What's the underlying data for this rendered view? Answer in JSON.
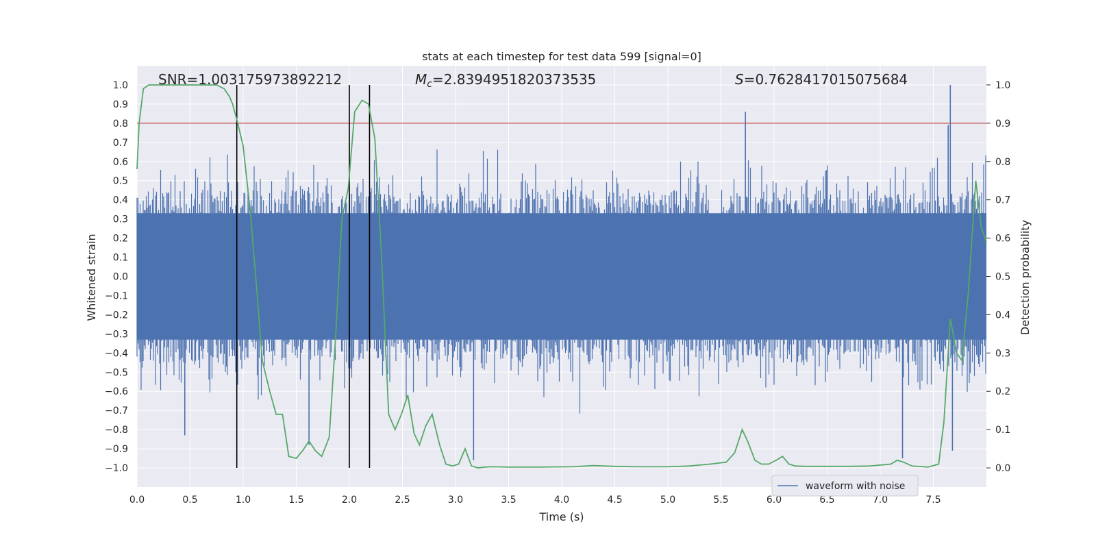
{
  "chart_data": {
    "type": "line",
    "title": "stats at each timestep for test data 599 [signal=0]",
    "xlabel": "Time (s)",
    "ylabel": "Whitened strain",
    "ylabel_right": "Detection probability",
    "xlim": [
      0.0,
      8.0
    ],
    "ylim": [
      -1.1,
      1.1
    ],
    "ylim_right": [
      -0.05,
      1.05
    ],
    "x_ticks": [
      0.0,
      0.5,
      1.0,
      1.5,
      2.0,
      2.5,
      3.0,
      3.5,
      4.0,
      4.5,
      5.0,
      5.5,
      6.0,
      6.5,
      7.0,
      7.5
    ],
    "y_ticks": [
      -1.0,
      -0.9,
      -0.8,
      -0.7,
      -0.6,
      -0.5,
      -0.4,
      -0.3,
      -0.2,
      -0.1,
      0.0,
      0.1,
      0.2,
      0.3,
      0.4,
      0.5,
      0.6,
      0.7,
      0.8,
      0.9,
      1.0
    ],
    "y_ticks_right": [
      0.0,
      0.1,
      0.2,
      0.3,
      0.4,
      0.5,
      0.6,
      0.7,
      0.8,
      0.9,
      1.0
    ],
    "grid": true,
    "legend": {
      "entries": [
        "waveform with noise"
      ],
      "placement": "lower-right"
    },
    "annotations": {
      "snr": "SNR=1.003175973892212",
      "mc_symbol": "M",
      "mc_sub": "c",
      "mc_value": "=2.8394951820373535",
      "s_symbol": "S",
      "s_value": "=0.7628417015075684"
    },
    "threshold": {
      "y_right": 0.9,
      "color": "#c44e52"
    },
    "vlines_x": [
      0.94,
      2.0,
      2.19
    ],
    "series": [
      {
        "name": "waveform with noise",
        "axis": "left",
        "color": "#4c72b0",
        "kind": "noise",
        "core_amplitude": 0.33,
        "peaks": [
          {
            "x": 0.45,
            "y": -0.83
          },
          {
            "x": 1.62,
            "y": -0.88
          },
          {
            "x": 3.17,
            "y": -0.96
          },
          {
            "x": 5.73,
            "y": 0.86
          },
          {
            "x": 7.21,
            "y": -0.95
          },
          {
            "x": 7.64,
            "y": 0.79
          },
          {
            "x": 7.66,
            "y": 1.0
          },
          {
            "x": 7.68,
            "y": -0.91
          }
        ]
      },
      {
        "name": "",
        "axis": "right",
        "color": "#55a868",
        "x": [
          0.0,
          0.02,
          0.06,
          0.11,
          0.2,
          0.4,
          0.6,
          0.75,
          0.82,
          0.87,
          0.9,
          0.94,
          1.0,
          1.07,
          1.13,
          1.18,
          1.25,
          1.31,
          1.37,
          1.43,
          1.5,
          1.56,
          1.62,
          1.68,
          1.74,
          1.81,
          1.87,
          1.93,
          1.99,
          2.05,
          2.12,
          2.18,
          2.24,
          2.3,
          2.37,
          2.43,
          2.49,
          2.55,
          2.61,
          2.66,
          2.72,
          2.78,
          2.85,
          2.91,
          2.97,
          3.03,
          3.09,
          3.15,
          3.21,
          3.28,
          3.34,
          3.5,
          3.8,
          4.1,
          4.3,
          4.4,
          4.5,
          4.7,
          5.0,
          5.2,
          5.4,
          5.55,
          5.63,
          5.7,
          5.75,
          5.82,
          5.88,
          5.95,
          6.02,
          6.08,
          6.14,
          6.2,
          6.3,
          6.5,
          6.7,
          6.9,
          7.1,
          7.16,
          7.22,
          7.3,
          7.45,
          7.55,
          7.6,
          7.66,
          7.72,
          7.77,
          7.83,
          7.9,
          7.95,
          8.0
        ],
        "y": [
          0.78,
          0.9,
          0.99,
          1.0,
          1.0,
          1.0,
          1.0,
          1.0,
          0.99,
          0.97,
          0.95,
          0.91,
          0.84,
          0.66,
          0.46,
          0.28,
          0.2,
          0.14,
          0.14,
          0.03,
          0.025,
          0.045,
          0.07,
          0.045,
          0.03,
          0.08,
          0.34,
          0.65,
          0.73,
          0.93,
          0.96,
          0.95,
          0.86,
          0.57,
          0.14,
          0.1,
          0.14,
          0.19,
          0.09,
          0.06,
          0.11,
          0.14,
          0.06,
          0.01,
          0.005,
          0.01,
          0.05,
          0.005,
          0.0,
          0.002,
          0.003,
          0.002,
          0.002,
          0.003,
          0.006,
          0.005,
          0.004,
          0.003,
          0.003,
          0.005,
          0.01,
          0.015,
          0.04,
          0.1,
          0.07,
          0.02,
          0.01,
          0.01,
          0.02,
          0.03,
          0.01,
          0.005,
          0.004,
          0.004,
          0.004,
          0.005,
          0.01,
          0.02,
          0.015,
          0.005,
          0.002,
          0.01,
          0.12,
          0.39,
          0.3,
          0.28,
          0.46,
          0.75,
          0.63,
          0.59
        ]
      }
    ]
  }
}
